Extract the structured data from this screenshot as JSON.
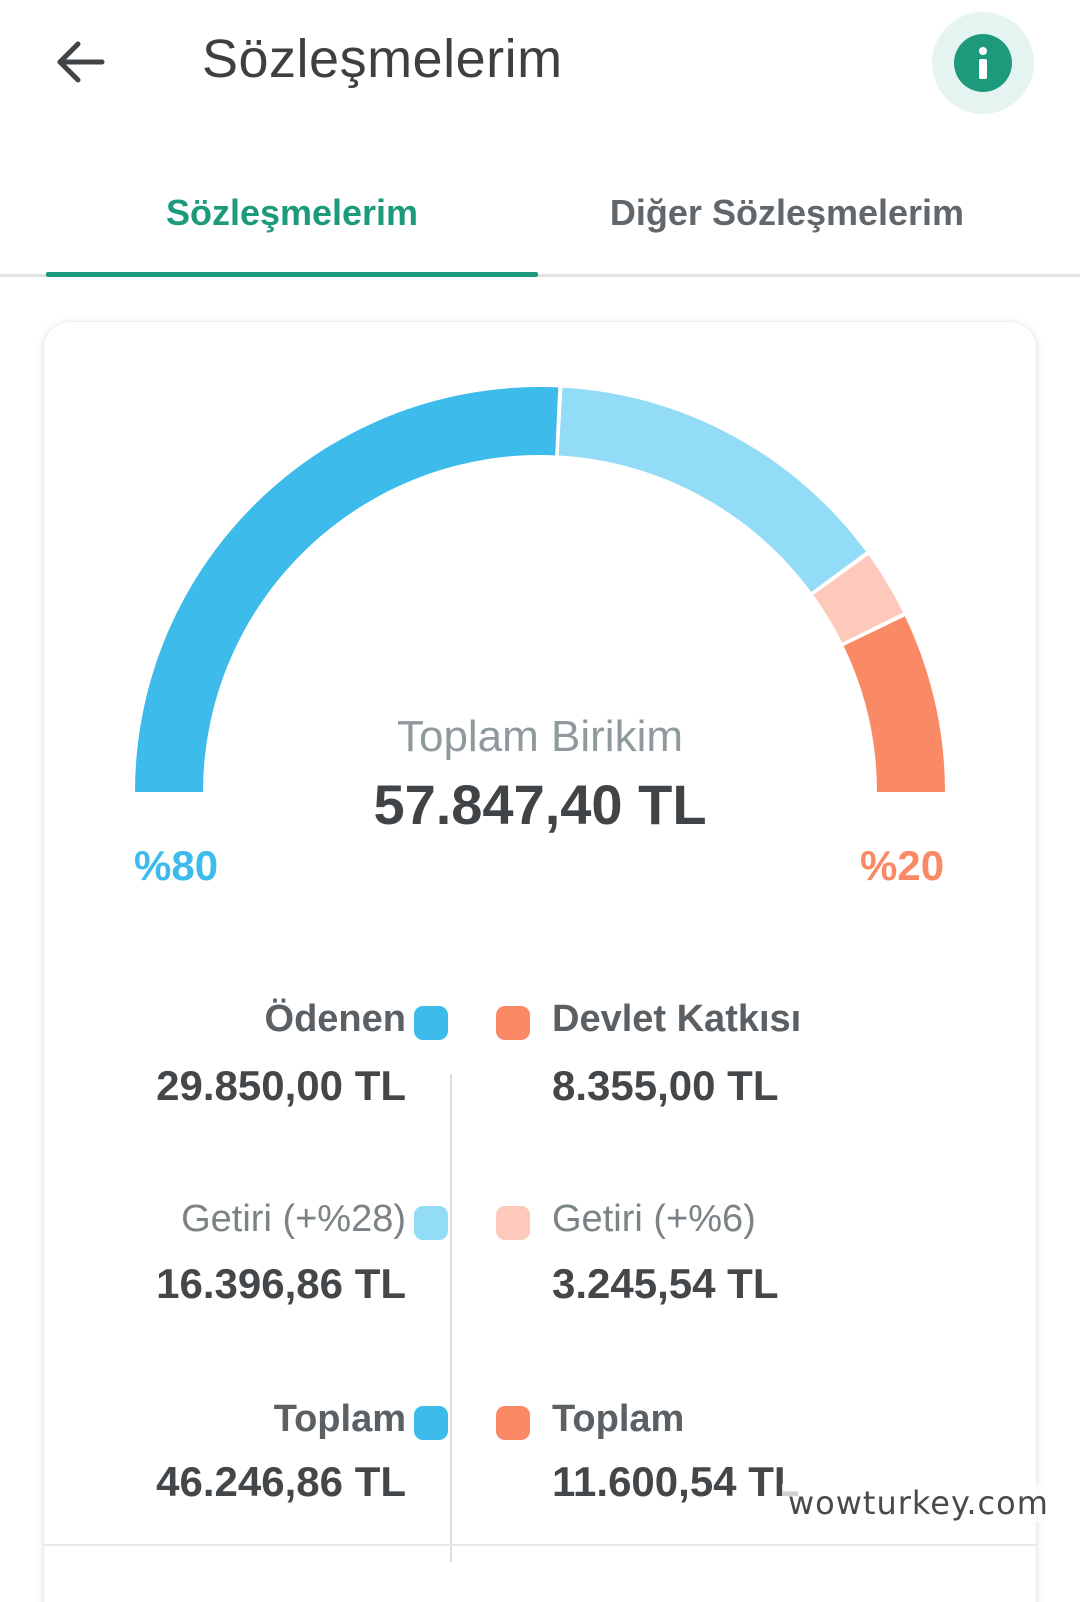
{
  "header": {
    "back_icon": "arrow-left-icon",
    "title": "Sözleşmelerim",
    "info_icon": "info-icon"
  },
  "tabs": [
    {
      "label": "Sözleşmelerim",
      "active": true
    },
    {
      "label": "Diğer Sözleşmelerim",
      "active": false
    }
  ],
  "summary": {
    "label": "Toplam Birikim",
    "value": "57.847,40 TL",
    "left_percent": "%80",
    "right_percent": "%20"
  },
  "breakdown": {
    "left": {
      "paid": {
        "label": "Ödenen",
        "value": "29.850,00 TL"
      },
      "return": {
        "label": "Getiri (+%28)",
        "value": "16.396,86 TL"
      },
      "total": {
        "label": "Toplam",
        "value": "46.246,86 TL"
      }
    },
    "right": {
      "contribution": {
        "label": "Devlet Katkısı",
        "value": "8.355,00 TL"
      },
      "return": {
        "label": "Getiri (+%6)",
        "value": "3.245,54 TL"
      },
      "total": {
        "label": "Toplam",
        "value": "11.600,54 TL"
      }
    }
  },
  "colors": {
    "accent": "#1d9a7c",
    "paid": "#3dbbea",
    "paid_return": "#92dcf8",
    "contribution": "#fa8965",
    "contribution_return": "#fcc9ba"
  },
  "chart_data": {
    "type": "pie",
    "subtype": "semicircle-gauge",
    "title": "Toplam Birikim",
    "total": 57847.4,
    "unit": "TL",
    "segments": [
      {
        "name": "Ödenen",
        "value": 29850.0
      },
      {
        "name": "Getiri (+%28)",
        "value": 16396.86
      },
      {
        "name": "Getiri (+%6)",
        "value": 3245.54
      },
      {
        "name": "Devlet Katkısı",
        "value": 8355.0
      }
    ]
  },
  "watermark": "wowturkey.com"
}
